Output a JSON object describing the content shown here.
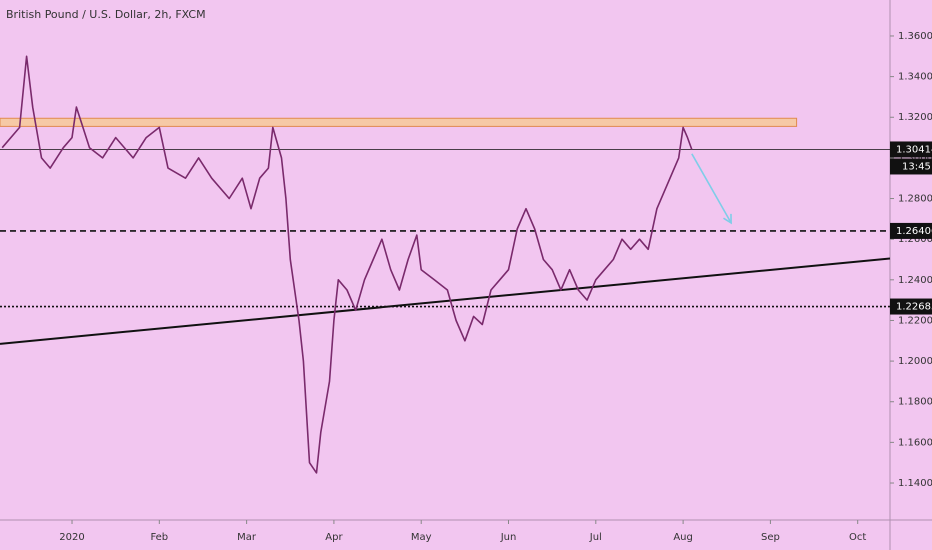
{
  "chart_data": {
    "type": "line",
    "title": "British Pound / U.S. Dollar, 2h, FXCM",
    "color": "#7a2a6c",
    "background": "#f2c6f0",
    "x": [
      -0.8,
      -0.6,
      -0.52,
      -0.45,
      -0.35,
      -0.25,
      -0.1,
      0.0,
      0.05,
      0.2,
      0.35,
      0.5,
      0.7,
      0.85,
      1.0,
      1.1,
      1.3,
      1.45,
      1.6,
      1.8,
      1.95,
      2.05,
      2.15,
      2.25,
      2.3,
      2.4,
      2.45,
      2.5,
      2.6,
      2.65,
      2.72,
      2.8,
      2.85,
      2.95,
      3.0,
      3.05,
      3.15,
      3.25,
      3.35,
      3.45,
      3.55,
      3.65,
      3.75,
      3.85,
      3.95,
      4.0,
      4.15,
      4.3,
      4.4,
      4.5,
      4.6,
      4.7,
      4.8,
      4.9,
      5.0,
      5.1,
      5.2,
      5.3,
      5.4,
      5.5,
      5.6,
      5.7,
      5.8,
      5.9,
      6.0,
      6.1,
      6.2,
      6.3,
      6.4,
      6.5,
      6.6,
      6.7,
      6.85,
      6.95,
      7.0,
      7.05,
      7.1
    ],
    "values": [
      1.305,
      1.315,
      1.35,
      1.325,
      1.3,
      1.295,
      1.305,
      1.31,
      1.325,
      1.305,
      1.3,
      1.31,
      1.3,
      1.31,
      1.315,
      1.295,
      1.29,
      1.3,
      1.29,
      1.28,
      1.29,
      1.275,
      1.29,
      1.295,
      1.315,
      1.3,
      1.28,
      1.25,
      1.22,
      1.2,
      1.15,
      1.145,
      1.165,
      1.19,
      1.22,
      1.24,
      1.235,
      1.225,
      1.24,
      1.25,
      1.26,
      1.245,
      1.235,
      1.25,
      1.262,
      1.245,
      1.24,
      1.235,
      1.22,
      1.21,
      1.222,
      1.218,
      1.235,
      1.24,
      1.245,
      1.265,
      1.275,
      1.265,
      1.25,
      1.245,
      1.235,
      1.245,
      1.235,
      1.23,
      1.24,
      1.245,
      1.25,
      1.26,
      1.255,
      1.26,
      1.255,
      1.275,
      1.29,
      1.3,
      1.315,
      1.31,
      1.30414
    ],
    "xlim": [
      -0.825,
      9.37
    ],
    "xticks": [
      {
        "value": 0,
        "label": "2020"
      },
      {
        "value": 1,
        "label": "Feb"
      },
      {
        "value": 2,
        "label": "Mar"
      },
      {
        "value": 3,
        "label": "Apr"
      },
      {
        "value": 4,
        "label": "May"
      },
      {
        "value": 5,
        "label": "Jun"
      },
      {
        "value": 6,
        "label": "Jul"
      },
      {
        "value": 7,
        "label": "Aug"
      },
      {
        "value": 8,
        "label": "Sep"
      },
      {
        "value": 9,
        "label": "Oct"
      }
    ],
    "ylim": [
      1.1218,
      1.3777
    ],
    "yticks": [
      {
        "value": 1.14,
        "label": "1.14000"
      },
      {
        "value": 1.16,
        "label": "1.16000"
      },
      {
        "value": 1.18,
        "label": "1.18000"
      },
      {
        "value": 1.2,
        "label": "1.20000"
      },
      {
        "value": 1.22,
        "label": "1.22000"
      },
      {
        "value": 1.24,
        "label": "1.24000"
      },
      {
        "value": 1.26,
        "label": "1.26000"
      },
      {
        "value": 1.28,
        "label": "1.28000"
      },
      {
        "value": 1.3,
        "label": "1.30000"
      },
      {
        "value": 1.32,
        "label": "1.32000"
      },
      {
        "value": 1.34,
        "label": "1.34000"
      },
      {
        "value": 1.36,
        "label": "1.36000"
      }
    ],
    "levels": [
      {
        "value": 1.30414,
        "line": "solid",
        "countdown": "13:45"
      },
      {
        "value": 1.26406,
        "line": "dashed"
      },
      {
        "value": 1.22685,
        "line": "dotted"
      }
    ],
    "resistance_zone": {
      "y": [
        1.3155,
        1.3195
      ],
      "x_end": 8.3,
      "color": "#f6c9a6"
    },
    "trendline": {
      "x": [
        -0.825,
        9.37
      ],
      "y": [
        1.2085,
        1.2505
      ]
    },
    "arrow": {
      "x": [
        7.1,
        7.55
      ],
      "y": [
        1.302,
        1.268
      ],
      "color": "#7fcde8"
    }
  }
}
